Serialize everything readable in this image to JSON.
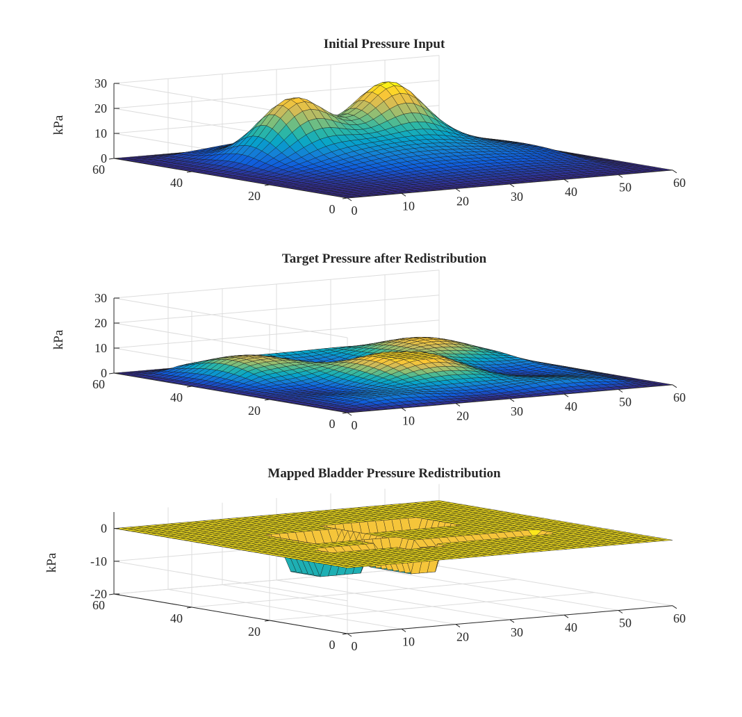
{
  "colors": {
    "parula": [
      "#352a87",
      "#0f5cdd",
      "#1481d6",
      "#06a4ca",
      "#2eb7a4",
      "#87bf77",
      "#d1bb59",
      "#fec832",
      "#f9fb0e"
    ],
    "axis": "#262626",
    "grid": "#dcdcdc",
    "mesh_edge": "#1a1a1a"
  },
  "chart_data": [
    {
      "type": "surface",
      "title": "Initial Pressure Input",
      "zlabel": "kPa",
      "xlim": [
        0,
        60
      ],
      "ylim": [
        0,
        60
      ],
      "zlim": [
        0,
        30
      ],
      "xticks": [
        "0",
        "10",
        "20",
        "30",
        "40",
        "50",
        "60"
      ],
      "yticks": [
        "0",
        "20",
        "40",
        "60"
      ],
      "zticks": [
        "0",
        "10",
        "20",
        "30"
      ],
      "clim": [
        0,
        30
      ],
      "grid": true,
      "surface": {
        "base_ridge_height": 9,
        "peaks": [
          {
            "x": 17,
            "y": 38,
            "height": 28,
            "spread": 5
          },
          {
            "x": 35,
            "y": 38,
            "height": 29,
            "spread": 5
          },
          {
            "x": 26,
            "y": 28,
            "height": 6,
            "spread": 9
          }
        ]
      }
    },
    {
      "type": "surface",
      "title": "Target Pressure after Redistribution",
      "zlabel": "kPa",
      "xlim": [
        0,
        60
      ],
      "ylim": [
        0,
        60
      ],
      "zlim": [
        0,
        30
      ],
      "xticks": [
        "0",
        "10",
        "20",
        "30",
        "40",
        "50",
        "60"
      ],
      "yticks": [
        "0",
        "20",
        "40",
        "60"
      ],
      "zticks": [
        "0",
        "10",
        "20",
        "30"
      ],
      "clim": [
        0,
        12
      ],
      "grid": true,
      "surface": {
        "plateau_height": 11,
        "min_height": 0
      }
    },
    {
      "type": "surface",
      "title": "Mapped Bladder Pressure Redistribution",
      "zlabel": "kPa",
      "xlim": [
        0,
        60
      ],
      "ylim": [
        0,
        60
      ],
      "zlim": [
        -20,
        5
      ],
      "xticks": [
        "0",
        "10",
        "20",
        "30",
        "40",
        "50",
        "60"
      ],
      "yticks": [
        "0",
        "20",
        "40",
        "60"
      ],
      "zticks": [
        "-20",
        "-10",
        "0"
      ],
      "clim": [
        -10,
        0
      ],
      "grid": true,
      "surface": {
        "flat_level": 0,
        "bladder_depths": [
          -2,
          -5,
          -8,
          -11
        ]
      }
    }
  ]
}
